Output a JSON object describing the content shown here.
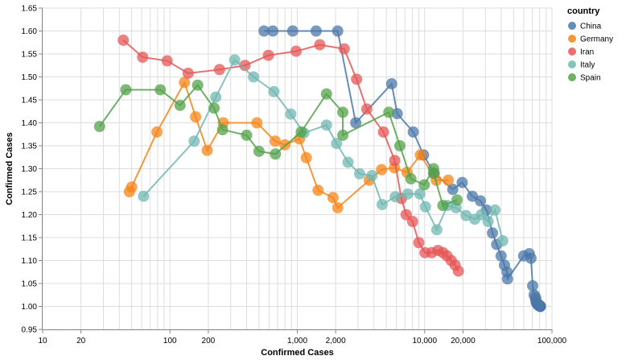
{
  "chart_data": {
    "type": "line",
    "xscale": "log",
    "xlabel": "Confirmed Cases",
    "ylabel": "Confirmed Cases",
    "xlim": [
      10,
      100000
    ],
    "ylim": [
      0.95,
      1.65
    ],
    "xticks": [
      10,
      20,
      100,
      200,
      1000,
      2000,
      10000,
      20000,
      100000
    ],
    "xtick_labels": [
      "10",
      "20",
      "100",
      "200",
      "1,000",
      "2,000",
      "10,000",
      "20,000",
      "100,000"
    ],
    "yticks": [
      0.95,
      1.0,
      1.05,
      1.1,
      1.15,
      1.2,
      1.25,
      1.3,
      1.35,
      1.4,
      1.45,
      1.5,
      1.55,
      1.6,
      1.65
    ],
    "ytick_labels": [
      "0.95",
      "1.00",
      "1.05",
      "1.10",
      "1.15",
      "1.20",
      "1.25",
      "1.30",
      "1.35",
      "1.40",
      "1.45",
      "1.50",
      "1.55",
      "1.60",
      "1.65"
    ],
    "grid": true,
    "legend": {
      "title": "country",
      "position": "right"
    },
    "series": [
      {
        "name": "China",
        "color": "#4c78a8",
        "points": [
          [
            548,
            1.6
          ],
          [
            643,
            1.6
          ],
          [
            920,
            1.6
          ],
          [
            1406,
            1.6
          ],
          [
            2075,
            1.6
          ],
          [
            2877,
            1.4
          ],
          [
            5509,
            1.485
          ],
          [
            6087,
            1.42
          ],
          [
            8141,
            1.38
          ],
          [
            9802,
            1.33
          ],
          [
            11891,
            1.29
          ],
          [
            16630,
            1.255
          ],
          [
            19716,
            1.27
          ],
          [
            23707,
            1.24
          ],
          [
            27440,
            1.23
          ],
          [
            30587,
            1.21
          ],
          [
            34110,
            1.16
          ],
          [
            36814,
            1.135
          ],
          [
            39829,
            1.11
          ],
          [
            42354,
            1.09
          ],
          [
            44386,
            1.075
          ],
          [
            44759,
            1.06
          ],
          [
            59895,
            1.11
          ],
          [
            66358,
            1.115
          ],
          [
            68413,
            1.105
          ],
          [
            70513,
            1.045
          ],
          [
            72434,
            1.025
          ],
          [
            74211,
            1.02
          ],
          [
            74619,
            1.015
          ],
          [
            75077,
            1.01
          ],
          [
            75550,
            1.008
          ],
          [
            77001,
            1.006
          ],
          [
            77022,
            1.005
          ],
          [
            77241,
            1.004
          ],
          [
            77754,
            1.004
          ],
          [
            78166,
            1.003
          ],
          [
            78600,
            1.003
          ],
          [
            78928,
            1.002
          ],
          [
            79356,
            1.002
          ],
          [
            79932,
            1.002
          ],
          [
            80136,
            1.001
          ],
          [
            80261,
            1.001
          ],
          [
            80386,
            1.001
          ],
          [
            80537,
            1.0005
          ],
          [
            80690,
            1.0005
          ],
          [
            80770,
            1.0004
          ],
          [
            80823,
            1.0004
          ],
          [
            80860,
            1.0004
          ],
          [
            80887,
            1.0003
          ],
          [
            80921,
            1.0003
          ],
          [
            80932,
            1.0003
          ],
          [
            80945,
            1.0003
          ],
          [
            80977,
            1.0003
          ],
          [
            81003,
            1.0003
          ]
        ]
      },
      {
        "name": "Germany",
        "color": "#f58518",
        "points": [
          [
            48,
            1.25
          ],
          [
            50,
            1.26
          ],
          [
            79,
            1.38
          ],
          [
            130,
            1.488
          ],
          [
            159,
            1.413
          ],
          [
            196,
            1.34
          ],
          [
            262,
            1.4
          ],
          [
            482,
            1.4
          ],
          [
            670,
            1.36
          ],
          [
            799,
            1.352
          ],
          [
            1040,
            1.365
          ],
          [
            1176,
            1.324
          ],
          [
            1457,
            1.253
          ],
          [
            1908,
            1.237
          ],
          [
            2078,
            1.215
          ],
          [
            3675,
            1.275
          ],
          [
            4585,
            1.298
          ],
          [
            5795,
            1.302
          ],
          [
            7272,
            1.292
          ],
          [
            9257,
            1.33
          ],
          [
            12327,
            1.275
          ],
          [
            15320,
            1.275
          ]
        ]
      },
      {
        "name": "Iran",
        "color": "#e45756",
        "points": [
          [
            43,
            1.58
          ],
          [
            61,
            1.543
          ],
          [
            95,
            1.535
          ],
          [
            139,
            1.508
          ],
          [
            245,
            1.516
          ],
          [
            388,
            1.525
          ],
          [
            593,
            1.547
          ],
          [
            978,
            1.556
          ],
          [
            1501,
            1.57
          ],
          [
            2336,
            1.561
          ],
          [
            2922,
            1.495
          ],
          [
            3513,
            1.43
          ],
          [
            4747,
            1.38
          ],
          [
            5823,
            1.318
          ],
          [
            6566,
            1.235
          ],
          [
            7161,
            1.2
          ],
          [
            8042,
            1.185
          ],
          [
            9000,
            1.139
          ],
          [
            10075,
            1.117
          ],
          [
            11364,
            1.117
          ],
          [
            12729,
            1.122
          ],
          [
            13938,
            1.117
          ],
          [
            14991,
            1.11
          ],
          [
            16169,
            1.1
          ],
          [
            17361,
            1.09
          ],
          [
            18407,
            1.077
          ]
        ]
      },
      {
        "name": "Italy",
        "color": "#72b7b2",
        "points": [
          [
            62,
            1.24
          ],
          [
            155,
            1.36
          ],
          [
            229,
            1.456
          ],
          [
            322,
            1.537
          ],
          [
            453,
            1.5
          ],
          [
            655,
            1.468
          ],
          [
            888,
            1.419
          ],
          [
            1128,
            1.378
          ],
          [
            1694,
            1.395
          ],
          [
            2036,
            1.355
          ],
          [
            2502,
            1.314
          ],
          [
            3089,
            1.289
          ],
          [
            3858,
            1.285
          ],
          [
            4636,
            1.222
          ],
          [
            5883,
            1.239
          ],
          [
            7375,
            1.245
          ],
          [
            9172,
            1.245
          ],
          [
            10149,
            1.217
          ],
          [
            12462,
            1.167
          ],
          [
            15113,
            1.22
          ],
          [
            17660,
            1.215
          ],
          [
            21157,
            1.198
          ],
          [
            24747,
            1.19
          ],
          [
            27980,
            1.2
          ],
          [
            31506,
            1.185
          ],
          [
            35713,
            1.21
          ],
          [
            41035,
            1.143
          ]
        ]
      },
      {
        "name": "Spain",
        "color": "#54a24b",
        "points": [
          [
            28,
            1.392
          ],
          [
            45,
            1.472
          ],
          [
            84,
            1.472
          ],
          [
            120,
            1.438
          ],
          [
            165,
            1.482
          ],
          [
            222,
            1.432
          ],
          [
            259,
            1.385
          ],
          [
            400,
            1.373
          ],
          [
            500,
            1.338
          ],
          [
            673,
            1.332
          ],
          [
            1073,
            1.38
          ],
          [
            1695,
            1.463
          ],
          [
            2277,
            1.423
          ],
          [
            2277,
            1.373
          ],
          [
            5232,
            1.423
          ],
          [
            6391,
            1.35
          ],
          [
            7798,
            1.278
          ],
          [
            9942,
            1.265
          ],
          [
            11748,
            1.3
          ],
          [
            11748,
            1.29
          ],
          [
            13910,
            1.22
          ],
          [
            17963,
            1.232
          ]
        ]
      }
    ]
  }
}
